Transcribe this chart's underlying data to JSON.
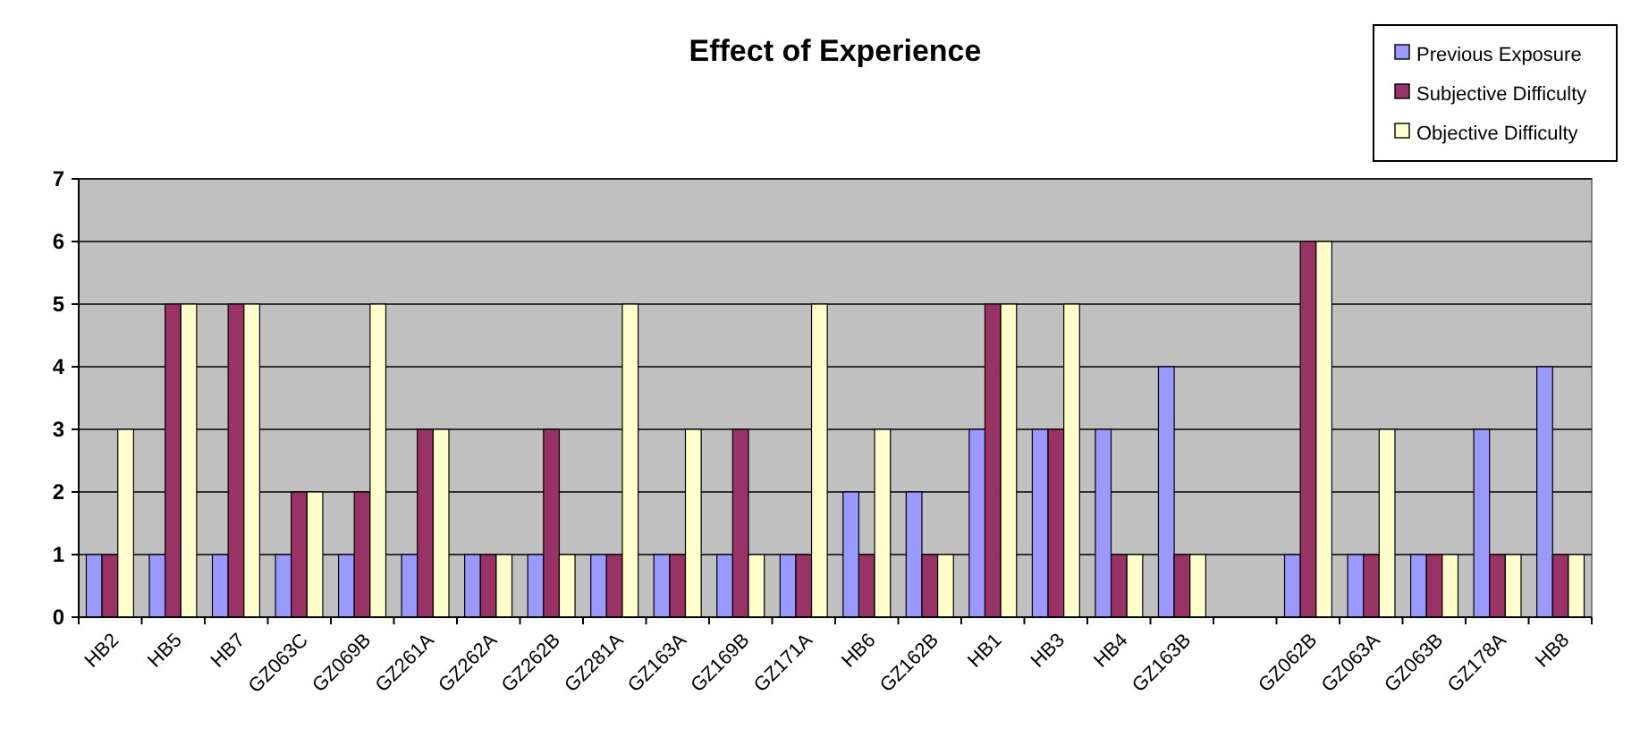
{
  "chart_data": {
    "type": "bar",
    "title": "Effect of Experience",
    "categories": [
      "HB2",
      "HB5",
      "HB7",
      "GZ063C",
      "GZ069B",
      "GZ261A",
      "GZ262A",
      "GZ262B",
      "GZ281A",
      "GZ163A",
      "GZ169B",
      "GZ171A",
      "HB6",
      "GZ162B",
      "HB1",
      "HB3",
      "HB4",
      "GZ163B",
      null,
      "GZ062B",
      "GZ063A",
      "GZ063B",
      "GZ178A",
      "HB8"
    ],
    "series": [
      {
        "name": "Previous Exposure",
        "color": "#9999ff",
        "values": [
          1,
          1,
          1,
          1,
          1,
          1,
          1,
          1,
          1,
          1,
          1,
          1,
          2,
          2,
          3,
          3,
          3,
          4,
          null,
          1,
          1,
          1,
          3,
          4
        ]
      },
      {
        "name": "Subjective Difficulty",
        "color": "#993366",
        "values": [
          1,
          5,
          5,
          2,
          2,
          3,
          1,
          3,
          1,
          1,
          3,
          1,
          1,
          1,
          5,
          3,
          1,
          1,
          null,
          6,
          1,
          1,
          1,
          1
        ]
      },
      {
        "name": "Objective Difficulty",
        "color": "#ffffcc",
        "values": [
          3,
          5,
          5,
          2,
          5,
          3,
          1,
          1,
          5,
          3,
          1,
          5,
          3,
          1,
          5,
          5,
          1,
          1,
          null,
          6,
          3,
          1,
          1,
          1
        ]
      }
    ],
    "ylim": [
      0,
      7
    ],
    "yticks": [
      0,
      1,
      2,
      3,
      4,
      5,
      6,
      7
    ],
    "grid": "y",
    "legend": "top right"
  }
}
